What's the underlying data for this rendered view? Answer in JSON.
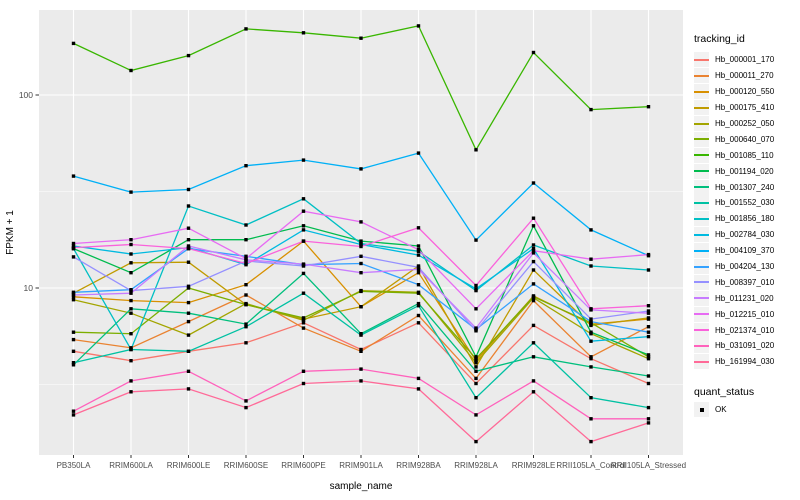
{
  "chart_data": {
    "type": "line",
    "xlabel": "sample_name",
    "ylabel": "FPKM + 1",
    "y_scale": "log10",
    "ylim": [
      1.35,
      276
    ],
    "y_ticks": [
      {
        "value": 10,
        "label": "10"
      },
      {
        "value": 100,
        "label": "100"
      }
    ],
    "y_minor": [
      3.162,
      31.623
    ],
    "grid": "on",
    "panel_bg": "#EBEBEB",
    "grid_color": "#FFFFFF",
    "point_color": "#000000",
    "categories": [
      "PB350LA",
      "RRIM600LA",
      "RRIM600LE",
      "RRIM600SE",
      "RRIM600PE",
      "RRIM901LA",
      "RRIM928BA",
      "RRIM928LA",
      "RRIM928LE",
      "RRII105LA_Control",
      "RRII105LA_Stressed"
    ],
    "series": [
      {
        "name": "Hb_000001_170",
        "color": "#F8766D",
        "values": [
          4.7,
          4.2,
          4.7,
          5.2,
          6.6,
          4.8,
          6.6,
          3.2,
          6.4,
          4.3,
          3.2
        ]
      },
      {
        "name": "Hb_000011_270",
        "color": "#EA8331",
        "values": [
          5.4,
          4.9,
          6.7,
          9.2,
          6.2,
          4.7,
          7.2,
          3.4,
          8.6,
          4.4,
          6.3
        ]
      },
      {
        "name": "Hb_000120_550",
        "color": "#D89000",
        "values": [
          9.0,
          8.6,
          8.4,
          10.4,
          17.5,
          8.0,
          12.0,
          4.2,
          9.1,
          6.5,
          6.9
        ]
      },
      {
        "name": "Hb_000175_410",
        "color": "#C09B00",
        "values": [
          9.4,
          13.5,
          13.6,
          8.2,
          6.9,
          8.0,
          13.0,
          3.9,
          12.4,
          6.4,
          7.0
        ]
      },
      {
        "name": "Hb_000252_050",
        "color": "#A3A500",
        "values": [
          8.7,
          7.4,
          5.7,
          8.3,
          6.8,
          9.7,
          9.5,
          4.1,
          8.9,
          5.8,
          4.3
        ]
      },
      {
        "name": "Hb_000640_070",
        "color": "#7CAE00",
        "values": [
          5.9,
          5.8,
          10.0,
          8.2,
          7.0,
          9.6,
          9.4,
          4.3,
          9.0,
          6.6,
          4.4
        ]
      },
      {
        "name": "Hb_001085_110",
        "color": "#39B600",
        "values": [
          185,
          134,
          160,
          220,
          210,
          197,
          228,
          52,
          166,
          84,
          87
        ]
      },
      {
        "name": "Hb_001194_020",
        "color": "#00BB4E",
        "values": [
          16.0,
          12.0,
          17.8,
          17.8,
          21,
          17.5,
          16.5,
          4.4,
          21,
          5.9,
          4.5
        ]
      },
      {
        "name": "Hb_001307_240",
        "color": "#00BF7D",
        "values": [
          4.0,
          7.8,
          7.4,
          6.5,
          11.9,
          5.8,
          8.3,
          3.7,
          4.4,
          3.9,
          3.5
        ]
      },
      {
        "name": "Hb_001552_030",
        "color": "#00C1A3",
        "values": [
          4.1,
          4.8,
          4.7,
          6.3,
          9.4,
          5.7,
          8.1,
          2.7,
          5.2,
          2.7,
          2.4
        ]
      },
      {
        "name": "Hb_001856_180",
        "color": "#00BFC4",
        "values": [
          16.0,
          4.8,
          26.6,
          21.2,
          29,
          17.0,
          15.5,
          9.7,
          16.7,
          13.0,
          12.4
        ]
      },
      {
        "name": "Hb_002784_030",
        "color": "#00BAE0",
        "values": [
          16.5,
          15.0,
          16.2,
          13.2,
          20,
          16.8,
          14.8,
          9.9,
          16.0,
          5.3,
          5.6
        ]
      },
      {
        "name": "Hb_004109_370",
        "color": "#00B0F6",
        "values": [
          38,
          31.4,
          32.4,
          43,
          46,
          41.4,
          50,
          17.7,
          35,
          20,
          14.7
        ]
      },
      {
        "name": "Hb_004204_130",
        "color": "#35A2FF",
        "values": [
          9.5,
          9.8,
          16.0,
          14.6,
          13.2,
          13.4,
          10.4,
          6.1,
          10.5,
          6.7,
          5.9
        ]
      },
      {
        "name": "Hb_008397_010",
        "color": "#9590FF",
        "values": [
          14.5,
          9.7,
          10.2,
          13.8,
          13.0,
          14.6,
          12.8,
          6.0,
          13.7,
          6.9,
          7.6
        ]
      },
      {
        "name": "Hb_011231_020",
        "color": "#C77CFF",
        "values": [
          9.2,
          9.4,
          16.5,
          14.0,
          13.3,
          12.0,
          12.5,
          6.2,
          15.2,
          7.7,
          7.4
        ]
      },
      {
        "name": "Hb_012215_010",
        "color": "#E76BF3",
        "values": [
          17.0,
          17.8,
          20.4,
          14.2,
          25,
          22,
          15.8,
          7.8,
          15.6,
          14.1,
          14.9
        ]
      },
      {
        "name": "Hb_021374_010",
        "color": "#FA62DB",
        "values": [
          16.2,
          16.8,
          16.0,
          13.4,
          17.5,
          16.4,
          20.5,
          10.3,
          23,
          7.8,
          8.1
        ]
      },
      {
        "name": "Hb_031091_020",
        "color": "#FF62BC",
        "values": [
          2.3,
          3.3,
          3.7,
          2.6,
          3.7,
          3.8,
          3.4,
          2.2,
          3.3,
          2.1,
          2.1
        ]
      },
      {
        "name": "Hb_161994_030",
        "color": "#FF6A98",
        "values": [
          2.2,
          2.9,
          3.0,
          2.4,
          3.2,
          3.3,
          3.0,
          1.6,
          2.9,
          1.6,
          2.0
        ]
      }
    ],
    "legend": {
      "color_title": "tracking_id",
      "shape_title": "quant_status",
      "shape_items": [
        {
          "label": "OK",
          "marker": "black-square"
        }
      ]
    }
  }
}
